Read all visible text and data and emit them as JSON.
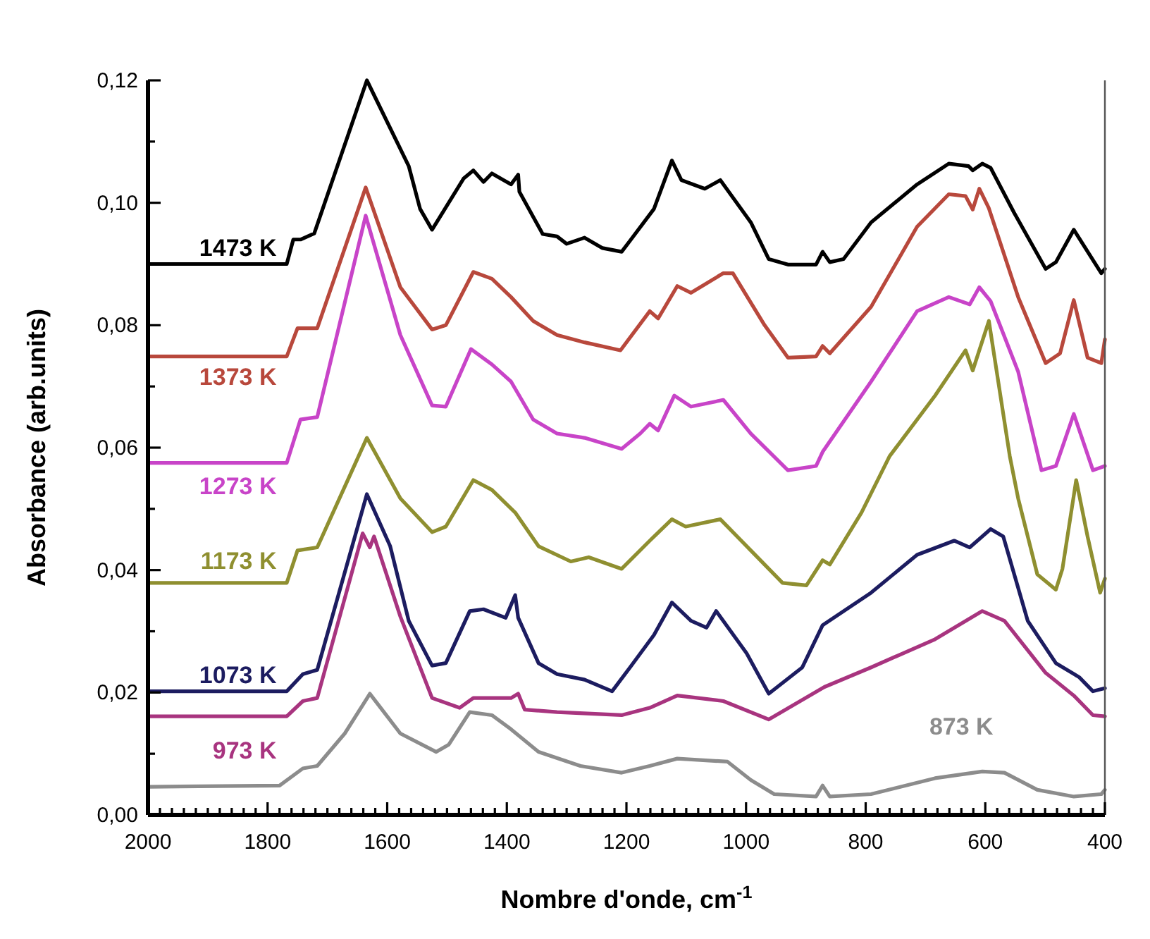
{
  "chart_data": {
    "type": "line",
    "xlabel": "Nombre d'onde, cm$^{-1}$",
    "ylabel": "Absorbance (arb.units)",
    "xlim": [
      2000,
      400
    ],
    "ylim": [
      0,
      0.12
    ],
    "xticks": [
      2000,
      {
        "value": 1980,
        "label": null
      },
      {
        "value": 1960,
        "label": null
      },
      {
        "value": 1940,
        "label": null
      },
      {
        "value": 1920,
        "label": null
      },
      {
        "value": 1900,
        "label": null
      },
      {
        "value": 1880,
        "label": null
      },
      {
        "value": 1860,
        "label": null
      },
      {
        "value": 1840,
        "label": null
      },
      {
        "value": 1820,
        "label": null
      },
      1800,
      {
        "value": 1780,
        "label": null
      },
      {
        "value": 1760,
        "label": null
      },
      {
        "value": 1740,
        "label": null
      },
      {
        "value": 1720,
        "label": null
      },
      {
        "value": 1700,
        "label": null
      },
      {
        "value": 1680,
        "label": null
      },
      {
        "value": 1660,
        "label": null
      },
      {
        "value": 1640,
        "label": null
      },
      {
        "value": 1620,
        "label": null
      },
      1600,
      {
        "value": 1580,
        "label": null
      },
      {
        "value": 1560,
        "label": null
      },
      {
        "value": 1540,
        "label": null
      },
      {
        "value": 1520,
        "label": null
      },
      {
        "value": 1500,
        "label": null
      },
      {
        "value": 1480,
        "label": null
      },
      {
        "value": 1460,
        "label": null
      },
      {
        "value": 1440,
        "label": null
      },
      {
        "value": 1420,
        "label": null
      },
      1400,
      {
        "value": 1380,
        "label": null
      },
      {
        "value": 1360,
        "label": null
      },
      {
        "value": 1340,
        "label": null
      },
      {
        "value": 1320,
        "label": null
      },
      {
        "value": 1300,
        "label": null
      },
      {
        "value": 1280,
        "label": null
      },
      {
        "value": 1260,
        "label": null
      },
      {
        "value": 1240,
        "label": null
      },
      {
        "value": 1220,
        "label": null
      },
      1200,
      {
        "value": 1180,
        "label": null
      },
      {
        "value": 1160,
        "label": null
      },
      {
        "value": 1140,
        "label": null
      },
      {
        "value": 1120,
        "label": null
      },
      {
        "value": 1100,
        "label": null
      },
      {
        "value": 1080,
        "label": null
      },
      {
        "value": 1060,
        "label": null
      },
      {
        "value": 1040,
        "label": null
      },
      {
        "value": 1020,
        "label": null
      },
      1000,
      {
        "value": 980,
        "label": null
      },
      {
        "value": 960,
        "label": null
      },
      {
        "value": 940,
        "label": null
      },
      {
        "value": 920,
        "label": null
      },
      {
        "value": 900,
        "label": null
      },
      {
        "value": 880,
        "label": null
      },
      {
        "value": 860,
        "label": null
      },
      {
        "value": 840,
        "label": null
      },
      {
        "value": 820,
        "label": null
      },
      800,
      {
        "value": 780,
        "label": null
      },
      {
        "value": 760,
        "label": null
      },
      {
        "value": 740,
        "label": null
      },
      {
        "value": 720,
        "label": null
      },
      {
        "value": 700,
        "label": null
      },
      {
        "value": 680,
        "label": null
      },
      {
        "value": 660,
        "label": null
      },
      {
        "value": 640,
        "label": null
      },
      {
        "value": 620,
        "label": null
      },
      600,
      {
        "value": 580,
        "label": null
      },
      {
        "value": 560,
        "label": null
      },
      {
        "value": 540,
        "label": null
      },
      {
        "value": 520,
        "label": null
      },
      {
        "value": 500,
        "label": null
      },
      {
        "value": 480,
        "label": null
      },
      {
        "value": 460,
        "label": null
      },
      {
        "value": 440,
        "label": null
      },
      {
        "value": 420,
        "label": null
      },
      400
    ],
    "yticks": [
      {
        "value": 0,
        "label": "0,00"
      },
      {
        "value": 0.01,
        "label": null
      },
      {
        "value": 0.02,
        "label": "0,02"
      },
      {
        "value": 0.03,
        "label": null
      },
      {
        "value": 0.04,
        "label": "0,04"
      },
      {
        "value": 0.05,
        "label": null
      },
      {
        "value": 0.06,
        "label": "0,06"
      },
      {
        "value": 0.07,
        "label": null
      },
      {
        "value": 0.08,
        "label": "0,08"
      },
      {
        "value": 0.09,
        "label": null
      },
      {
        "value": 0.1,
        "label": "0,10"
      },
      {
        "value": 0.11,
        "label": null
      },
      {
        "value": 0.12,
        "label": "0,12"
      }
    ],
    "grid": false,
    "marker": "none",
    "line_style": "solid",
    "series": [
      {
        "name": "1473 K",
        "color": "#000000",
        "x": [
          2000,
          1768,
          1757,
          1745,
          1722,
          1634,
          1564,
          1545,
          1525,
          1472,
          1456,
          1439,
          1425,
          1393,
          1381,
          1379,
          1340,
          1316,
          1300,
          1270,
          1240,
          1208,
          1194,
          1154,
          1124,
          1108,
          1069,
          1043,
          992,
          962,
          930,
          883,
          872,
          860,
          837,
          791,
          714,
          661,
          628,
          621,
          605,
          591,
          552,
          499,
          482,
          452,
          406,
          400
        ],
        "values": [
          0.09,
          0.09,
          0.094,
          0.094,
          0.095,
          0.12,
          0.106,
          0.099,
          0.0956,
          0.104,
          0.1053,
          0.1034,
          0.1048,
          0.103,
          0.1046,
          0.1018,
          0.0949,
          0.0945,
          0.0933,
          0.0943,
          0.0926,
          0.092,
          0.0938,
          0.099,
          0.1069,
          0.1037,
          0.1023,
          0.1037,
          0.0968,
          0.0908,
          0.0899,
          0.0899,
          0.092,
          0.0903,
          0.0908,
          0.0968,
          0.103,
          0.1064,
          0.106,
          0.1053,
          0.1064,
          0.1057,
          0.0984,
          0.0892,
          0.0903,
          0.0956,
          0.0885,
          0.0892
        ]
      },
      {
        "name": "1373 K",
        "color": "#b8483c",
        "x": [
          2000,
          1768,
          1750,
          1717,
          1636,
          1578,
          1525,
          1502,
          1456,
          1425,
          1393,
          1356,
          1316,
          1270,
          1210,
          1161,
          1147,
          1115,
          1092,
          1038,
          1022,
          969,
          930,
          883,
          872,
          860,
          791,
          714,
          661,
          633,
          621,
          610,
          594,
          545,
          499,
          475,
          452,
          429,
          406,
          400
        ],
        "values": [
          0.0749,
          0.0749,
          0.0795,
          0.0795,
          0.1025,
          0.0862,
          0.0793,
          0.08,
          0.0887,
          0.0876,
          0.0846,
          0.0807,
          0.0784,
          0.0772,
          0.0759,
          0.0823,
          0.0811,
          0.0864,
          0.0853,
          0.0885,
          0.0885,
          0.08,
          0.0747,
          0.0749,
          0.0766,
          0.0754,
          0.083,
          0.0961,
          0.1014,
          0.1011,
          0.0989,
          0.1023,
          0.0991,
          0.0846,
          0.0738,
          0.0754,
          0.0841,
          0.0747,
          0.0738,
          0.0777
        ]
      },
      {
        "name": "1273 K",
        "color": "#c844c8",
        "x": [
          2000,
          1768,
          1745,
          1717,
          1636,
          1578,
          1525,
          1502,
          1460,
          1425,
          1393,
          1356,
          1316,
          1270,
          1208,
          1177,
          1161,
          1147,
          1120,
          1092,
          1038,
          992,
          930,
          883,
          872,
          791,
          714,
          661,
          626,
          610,
          591,
          545,
          506,
          482,
          452,
          420,
          400
        ],
        "values": [
          0.0575,
          0.0575,
          0.0646,
          0.065,
          0.0979,
          0.0784,
          0.0669,
          0.0667,
          0.0761,
          0.0736,
          0.0708,
          0.0646,
          0.0623,
          0.0616,
          0.0598,
          0.0623,
          0.0639,
          0.0628,
          0.0685,
          0.0667,
          0.0678,
          0.0623,
          0.0563,
          0.057,
          0.0593,
          0.0708,
          0.0823,
          0.0846,
          0.0834,
          0.0862,
          0.0839,
          0.0724,
          0.0563,
          0.057,
          0.0655,
          0.0563,
          0.057
        ]
      },
      {
        "name": "1173 K",
        "color": "#8f8f30",
        "x": [
          2000,
          1768,
          1750,
          1717,
          1634,
          1578,
          1525,
          1502,
          1456,
          1425,
          1386,
          1347,
          1293,
          1263,
          1208,
          1161,
          1124,
          1101,
          1043,
          992,
          939,
          899,
          872,
          860,
          807,
          760,
          684,
          633,
          621,
          594,
          559,
          545,
          513,
          482,
          471,
          448,
          429,
          408,
          400
        ],
        "values": [
          0.0379,
          0.0379,
          0.0432,
          0.0437,
          0.0616,
          0.0517,
          0.0462,
          0.0471,
          0.0547,
          0.0531,
          0.0494,
          0.0439,
          0.0414,
          0.0421,
          0.0402,
          0.0448,
          0.0483,
          0.0471,
          0.0483,
          0.0432,
          0.0379,
          0.0375,
          0.0416,
          0.0409,
          0.0494,
          0.0586,
          0.0685,
          0.0759,
          0.0726,
          0.0807,
          0.0586,
          0.0517,
          0.0393,
          0.0368,
          0.0402,
          0.0547,
          0.0455,
          0.0363,
          0.0386
        ]
      },
      {
        "name": "1073 K",
        "color": "#1c1c60",
        "x": [
          2000,
          1768,
          1741,
          1717,
          1634,
          1595,
          1564,
          1525,
          1502,
          1462,
          1439,
          1402,
          1386,
          1381,
          1347,
          1316,
          1270,
          1224,
          1194,
          1154,
          1124,
          1092,
          1066,
          1050,
          999,
          962,
          906,
          872,
          791,
          714,
          652,
          626,
          591,
          570,
          529,
          482,
          443,
          420,
          400
        ],
        "values": [
          0.0202,
          0.0202,
          0.023,
          0.0237,
          0.0524,
          0.0439,
          0.0317,
          0.0244,
          0.0248,
          0.0333,
          0.0336,
          0.0322,
          0.0359,
          0.0322,
          0.0248,
          0.023,
          0.0221,
          0.0202,
          0.0241,
          0.0294,
          0.0347,
          0.0317,
          0.0306,
          0.0333,
          0.0264,
          0.0198,
          0.0241,
          0.031,
          0.0363,
          0.0425,
          0.0448,
          0.0437,
          0.0467,
          0.0455,
          0.0317,
          0.0248,
          0.0225,
          0.0202,
          0.0207
        ]
      },
      {
        "name": "973 K",
        "color": "#a8347f",
        "x": [
          2000,
          1768,
          1741,
          1717,
          1641,
          1629,
          1622,
          1578,
          1525,
          1479,
          1456,
          1393,
          1381,
          1370,
          1316,
          1208,
          1161,
          1115,
          1038,
          962,
          869,
          791,
          684,
          605,
          568,
          499,
          452,
          420,
          400
        ],
        "values": [
          0.0161,
          0.0161,
          0.0186,
          0.0191,
          0.046,
          0.0437,
          0.0455,
          0.0324,
          0.0191,
          0.0175,
          0.0191,
          0.0191,
          0.0198,
          0.0172,
          0.0168,
          0.0163,
          0.0175,
          0.0195,
          0.0186,
          0.0156,
          0.0209,
          0.0241,
          0.0287,
          0.0333,
          0.0317,
          0.0232,
          0.0195,
          0.0163,
          0.0161
        ]
      },
      {
        "name": "873 K",
        "color": "#8c8c8c",
        "x": [
          2000,
          1780,
          1741,
          1717,
          1671,
          1629,
          1578,
          1518,
          1497,
          1462,
          1425,
          1393,
          1347,
          1277,
          1208,
          1161,
          1115,
          1031,
          992,
          953,
          883,
          872,
          860,
          791,
          684,
          605,
          568,
          513,
          452,
          406,
          400
        ],
        "values": [
          0.0046,
          0.0048,
          0.0076,
          0.008,
          0.0133,
          0.0198,
          0.0133,
          0.0103,
          0.0115,
          0.0168,
          0.0163,
          0.014,
          0.0103,
          0.008,
          0.0069,
          0.008,
          0.0092,
          0.0087,
          0.0057,
          0.0034,
          0.003,
          0.0048,
          0.003,
          0.0034,
          0.006,
          0.0071,
          0.0069,
          0.0041,
          0.003,
          0.0034,
          0.0041
        ]
      }
    ]
  }
}
